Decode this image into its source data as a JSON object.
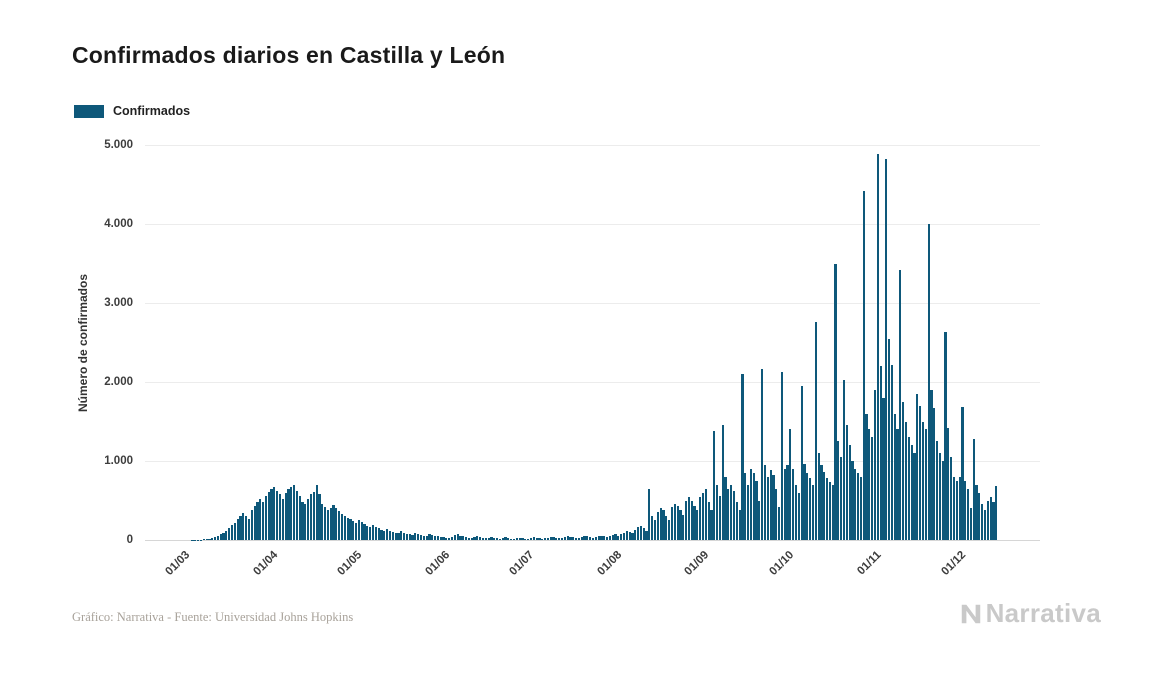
{
  "title": "Confirmados diarios en Castilla y León",
  "legend": {
    "label": "Confirmados"
  },
  "footer": {
    "credit": "Gráfico: Narrativa - Fuente: Universidad Johns Hopkins"
  },
  "logo": {
    "text": "Narrativa"
  },
  "colors": {
    "bar": "#0e587a",
    "grid": "#ececec",
    "axis_text": "#3d3d3d",
    "title_text": "#1a1a1a",
    "footer_text": "#a8a29a",
    "logo_text": "#c9c9c9",
    "background": "#ffffff"
  },
  "chart_data": {
    "type": "bar",
    "title": "Confirmados diarios en Castilla y León",
    "xlabel": "",
    "ylabel": "Número de confirmados",
    "ylim": [
      0,
      5000
    ],
    "grid": "horizontal",
    "legend_position": "top-left",
    "y_tick_values": [
      0,
      1000,
      2000,
      3000,
      4000,
      5000
    ],
    "y_tick_labels": [
      "0",
      "1.000",
      "2.000",
      "3.000",
      "4.000",
      "5.000"
    ],
    "x_tick_labels": [
      "01/03",
      "01/04",
      "01/05",
      "01/06",
      "01/07",
      "01/08",
      "01/09",
      "01/10",
      "01/11",
      "01/12"
    ],
    "x_tick_day_index": [
      0,
      31,
      61,
      92,
      122,
      153,
      184,
      214,
      245,
      275
    ],
    "series": [
      {
        "name": "Confirmados",
        "start_date": "01/03",
        "frequency": "daily",
        "values": [
          0,
          0,
          0,
          1,
          2,
          3,
          5,
          8,
          12,
          18,
          25,
          40,
          55,
          75,
          95,
          120,
          150,
          185,
          220,
          260,
          300,
          340,
          300,
          260,
          380,
          430,
          480,
          520,
          480,
          560,
          610,
          650,
          670,
          620,
          580,
          520,
          600,
          640,
          670,
          700,
          620,
          560,
          480,
          450,
          520,
          580,
          610,
          700,
          580,
          460,
          420,
          380,
          400,
          440,
          410,
          370,
          330,
          300,
          280,
          260,
          240,
          220,
          250,
          230,
          200,
          180,
          160,
          190,
          170,
          150,
          130,
          120,
          140,
          110,
          100,
          90,
          85,
          110,
          95,
          80,
          70,
          65,
          90,
          75,
          60,
          55,
          50,
          70,
          60,
          50,
          45,
          40,
          35,
          30,
          28,
          40,
          60,
          80,
          55,
          45,
          35,
          30,
          25,
          40,
          50,
          35,
          28,
          22,
          30,
          38,
          28,
          22,
          18,
          25,
          32,
          24,
          18,
          15,
          20,
          28,
          20,
          15,
          18,
          25,
          35,
          30,
          22,
          15,
          20,
          30,
          40,
          35,
          28,
          20,
          25,
          38,
          45,
          40,
          32,
          25,
          30,
          42,
          50,
          45,
          38,
          30,
          35,
          48,
          55,
          50,
          40,
          45,
          60,
          70,
          55,
          80,
          95,
          110,
          100,
          85,
          130,
          160,
          180,
          150,
          120,
          650,
          300,
          250,
          350,
          400,
          380,
          300,
          250,
          420,
          460,
          430,
          380,
          320,
          500,
          540,
          490,
          430,
          380,
          550,
          600,
          650,
          480,
          380,
          1380,
          700,
          560,
          1450,
          800,
          650,
          700,
          620,
          480,
          380,
          2100,
          850,
          700,
          900,
          850,
          750,
          500,
          2170,
          950,
          800,
          880,
          820,
          650,
          420,
          2130,
          900,
          950,
          1400,
          900,
          700,
          600,
          1950,
          960,
          850,
          780,
          700,
          2760,
          1100,
          950,
          860,
          780,
          730,
          700,
          3500,
          1250,
          1050,
          2020,
          1450,
          1200,
          1000,
          900,
          850,
          800,
          4420,
          1600,
          1400,
          1300,
          1900,
          4890,
          2200,
          1800,
          4820,
          2550,
          2210,
          1600,
          1400,
          3420,
          1750,
          1500,
          1300,
          1200,
          1100,
          1850,
          1700,
          1500,
          1400,
          4000,
          1900,
          1670,
          1250,
          1100,
          1000,
          2630,
          1420,
          1050,
          800,
          750,
          800,
          1690,
          750,
          650,
          400,
          1280,
          700,
          600,
          450,
          380,
          500,
          550,
          480,
          680
        ]
      }
    ]
  }
}
